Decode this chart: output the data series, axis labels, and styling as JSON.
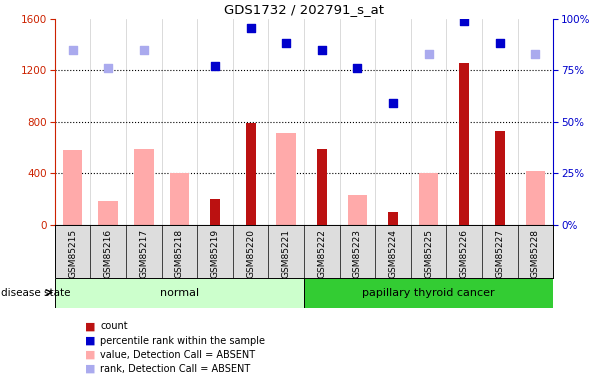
{
  "title": "GDS1732 / 202791_s_at",
  "samples": [
    "GSM85215",
    "GSM85216",
    "GSM85217",
    "GSM85218",
    "GSM85219",
    "GSM85220",
    "GSM85221",
    "GSM85222",
    "GSM85223",
    "GSM85224",
    "GSM85225",
    "GSM85226",
    "GSM85227",
    "GSM85228"
  ],
  "count_red": [
    0,
    0,
    0,
    0,
    200,
    790,
    0,
    590,
    0,
    100,
    0,
    1260,
    730,
    0
  ],
  "count_pink": [
    580,
    190,
    590,
    400,
    0,
    0,
    710,
    0,
    230,
    0,
    400,
    0,
    0,
    420
  ],
  "rank_blue": [
    0,
    0,
    0,
    0,
    1230,
    1530,
    1410,
    1360,
    1220,
    950,
    0,
    1580,
    1410,
    0
  ],
  "rank_lightblue": [
    1360,
    1220,
    1360,
    0,
    0,
    0,
    0,
    0,
    0,
    0,
    1330,
    0,
    0,
    1330
  ],
  "normal_group": [
    0,
    1,
    2,
    3,
    4,
    5,
    6
  ],
  "cancer_group": [
    7,
    8,
    9,
    10,
    11,
    12,
    13
  ],
  "normal_label": "normal",
  "cancer_label": "papillary thyroid cancer",
  "disease_state_label": "disease state",
  "ylim_left": [
    0,
    1600
  ],
  "ylim_right": [
    0,
    100
  ],
  "yticks_left": [
    0,
    400,
    800,
    1200,
    1600
  ],
  "yticks_right": [
    0,
    25,
    50,
    75,
    100
  ],
  "ytick_labels_right": [
    "0%",
    "25%",
    "50%",
    "75%",
    "100%"
  ],
  "red_color": "#bb1111",
  "pink_color": "#ffaaaa",
  "blue_color": "#0000cc",
  "lightblue_color": "#aaaaee",
  "normal_bg": "#ccffcc",
  "cancer_bg": "#33cc33",
  "tick_bg": "#dddddd",
  "legend_items": [
    {
      "color": "#bb1111",
      "label": "count"
    },
    {
      "color": "#0000cc",
      "label": "percentile rank within the sample"
    },
    {
      "color": "#ffaaaa",
      "label": "value, Detection Call = ABSENT"
    },
    {
      "color": "#aaaaee",
      "label": "rank, Detection Call = ABSENT"
    }
  ]
}
